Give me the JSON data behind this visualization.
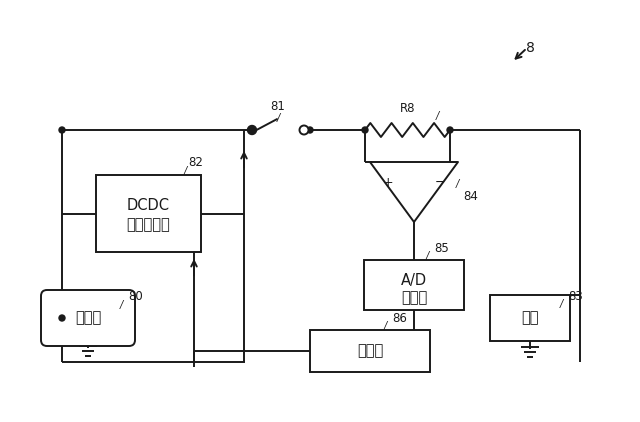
{
  "bg_color": "#ffffff",
  "line_color": "#1a1a1a",
  "label_8": "8",
  "label_80": "80",
  "label_81": "81",
  "label_82": "82",
  "label_83": "83",
  "label_84": "84",
  "label_85": "85",
  "label_86": "86",
  "label_R8": "R8",
  "text_dcdc1": "DCDC",
  "text_dcdc2": "コンバータ",
  "text_generator": "発電機",
  "text_load": "負荷",
  "text_ad1": "A/D",
  "text_ad2": "変換部",
  "text_control": "制御部",
  "figsize": [
    6.4,
    4.22
  ],
  "dpi": 100
}
